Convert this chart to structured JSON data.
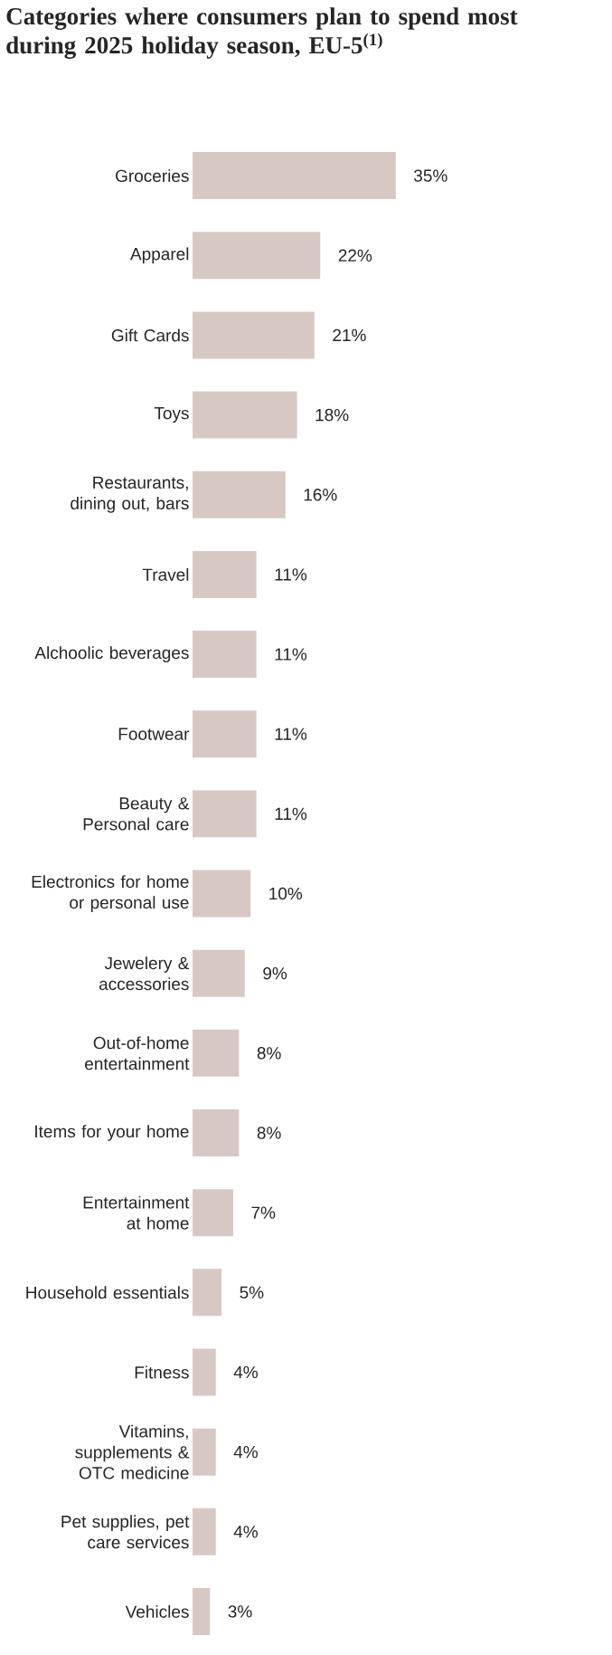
{
  "chart_data": {
    "type": "bar",
    "orientation": "horizontal",
    "title": "Categories where consumers plan to spend most during 2025 holiday season, EU-5$^{(1)}$",
    "categories": [
      "Groceries",
      "Apparel",
      "Gift Cards",
      "Toys",
      "Restaurants, dining out, bars",
      "Travel",
      "Alchoolic beverages",
      "Footwear",
      "Beauty & Personal care",
      "Electronics for home or personal use",
      "Jewelery & accessories",
      "Out-of-home entertainment",
      "Items for your home",
      "Entertainment at home",
      "Household essentials",
      "Fitness",
      "Vitamins, supplements & OTC medicine",
      "Pet supplies, pet care services",
      "Vehicles"
    ],
    "values": [
      35,
      22,
      21,
      18,
      16,
      11,
      11,
      11,
      11,
      10,
      9,
      8,
      8,
      7,
      5,
      4,
      4,
      4,
      3
    ],
    "value_labels": [
      "35%",
      "22%",
      "21%",
      "18%",
      "16%",
      "11%",
      "11%",
      "11%",
      "11%",
      "10%",
      "9%",
      "8%",
      "8%",
      "7%",
      "5%",
      "4%",
      "4%",
      "4%",
      "3%"
    ],
    "color": "#d8c8c3"
  }
}
